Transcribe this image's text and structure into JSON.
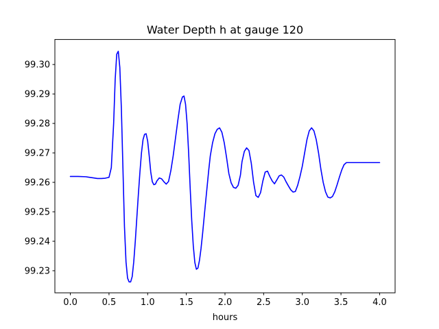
{
  "chart_data": {
    "type": "line",
    "title": "Water Depth h at gauge 120",
    "xlabel": "hours",
    "ylabel": "",
    "xlim": [
      -0.2,
      4.2
    ],
    "ylim": [
      99.2225,
      99.3085
    ],
    "xticks": [
      0.0,
      0.5,
      1.0,
      1.5,
      2.0,
      2.5,
      3.0,
      3.5,
      4.0
    ],
    "xtick_labels": [
      "0.0",
      "0.5",
      "1.0",
      "1.5",
      "2.0",
      "2.5",
      "3.0",
      "3.5",
      "4.0"
    ],
    "yticks": [
      99.23,
      99.24,
      99.25,
      99.26,
      99.27,
      99.28,
      99.29,
      99.3
    ],
    "ytick_labels": [
      "99.23",
      "99.24",
      "99.25",
      "99.26",
      "99.27",
      "99.28",
      "99.29",
      "99.30"
    ],
    "grid": false,
    "series": [
      {
        "color": "#0000ff",
        "x": [
          0.0,
          0.1,
          0.2,
          0.3,
          0.35,
          0.4,
          0.45,
          0.5,
          0.53,
          0.56,
          0.58,
          0.6,
          0.62,
          0.64,
          0.66,
          0.68,
          0.7,
          0.72,
          0.74,
          0.76,
          0.78,
          0.8,
          0.82,
          0.84,
          0.86,
          0.88,
          0.9,
          0.92,
          0.94,
          0.96,
          0.98,
          1.0,
          1.02,
          1.04,
          1.06,
          1.08,
          1.1,
          1.12,
          1.15,
          1.18,
          1.21,
          1.24,
          1.27,
          1.3,
          1.33,
          1.36,
          1.39,
          1.42,
          1.45,
          1.47,
          1.49,
          1.51,
          1.53,
          1.55,
          1.57,
          1.59,
          1.61,
          1.63,
          1.65,
          1.67,
          1.69,
          1.71,
          1.73,
          1.75,
          1.77,
          1.79,
          1.81,
          1.84,
          1.87,
          1.9,
          1.93,
          1.96,
          1.99,
          2.02,
          2.05,
          2.08,
          2.11,
          2.14,
          2.17,
          2.2,
          2.22,
          2.25,
          2.28,
          2.31,
          2.34,
          2.37,
          2.4,
          2.43,
          2.46,
          2.49,
          2.52,
          2.55,
          2.58,
          2.61,
          2.64,
          2.67,
          2.7,
          2.73,
          2.76,
          2.79,
          2.82,
          2.85,
          2.88,
          2.91,
          2.94,
          2.97,
          3.0,
          3.03,
          3.06,
          3.09,
          3.12,
          3.15,
          3.18,
          3.21,
          3.24,
          3.27,
          3.3,
          3.33,
          3.36,
          3.39,
          3.42,
          3.45,
          3.48,
          3.51,
          3.54,
          3.57,
          3.6,
          3.63,
          3.66,
          3.69,
          3.72,
          3.75,
          3.78,
          3.81,
          3.84,
          3.87,
          3.9,
          3.93,
          3.96,
          4.0
        ],
        "y": [
          99.262,
          99.262,
          99.2619,
          99.2615,
          99.2613,
          99.2613,
          99.2614,
          99.2617,
          99.265,
          99.28,
          99.295,
          99.3035,
          99.3045,
          99.299,
          99.285,
          99.265,
          99.245,
          99.233,
          99.2275,
          99.2262,
          99.2262,
          99.228,
          99.233,
          99.24,
          99.248,
          99.256,
          99.2635,
          99.27,
          99.2745,
          99.2763,
          99.2765,
          99.274,
          99.269,
          99.2635,
          99.2602,
          99.2592,
          99.2594,
          99.2605,
          99.2615,
          99.2612,
          99.2602,
          99.2594,
          99.2603,
          99.264,
          99.269,
          99.275,
          99.281,
          99.2865,
          99.289,
          99.2893,
          99.2865,
          99.28,
          99.27,
          99.258,
          99.247,
          99.2385,
          99.2328,
          99.2305,
          99.2309,
          99.2335,
          99.2375,
          99.2425,
          99.248,
          99.2535,
          99.2588,
          99.2642,
          99.269,
          99.2735,
          99.2765,
          99.278,
          99.2785,
          99.277,
          99.2735,
          99.2685,
          99.263,
          99.2598,
          99.2583,
          99.258,
          99.259,
          99.2625,
          99.267,
          99.2705,
          99.2717,
          99.2708,
          99.2665,
          99.26,
          99.2555,
          99.2549,
          99.2565,
          99.2605,
          99.2635,
          99.2638,
          99.262,
          99.2605,
          99.2595,
          99.2608,
          99.2622,
          99.2625,
          99.2618,
          99.2602,
          99.2588,
          99.2575,
          99.2567,
          99.2569,
          99.259,
          99.262,
          99.2655,
          99.27,
          99.2745,
          99.2775,
          99.2785,
          99.2775,
          99.2745,
          99.27,
          99.2645,
          99.26,
          99.2568,
          99.255,
          99.2547,
          99.2552,
          99.2568,
          99.2592,
          99.2618,
          99.2642,
          99.266,
          99.2667,
          99.2667,
          99.2667,
          99.2667,
          99.2667,
          99.2667,
          99.2667,
          99.2667,
          99.2667,
          99.2667,
          99.2667,
          99.2667,
          99.2667,
          99.2667,
          99.2667
        ]
      }
    ]
  }
}
